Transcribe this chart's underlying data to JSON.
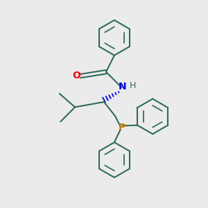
{
  "background_color": "#ebebeb",
  "bond_color": "#2d6b5e",
  "bond_width": 1.5,
  "o_color": "#ff0000",
  "n_color": "#0000ff",
  "p_color": "#c87800",
  "figsize": [
    3.0,
    3.0
  ],
  "dpi": 100,
  "xlim": [
    0,
    10
  ],
  "ylim": [
    0,
    10
  ]
}
